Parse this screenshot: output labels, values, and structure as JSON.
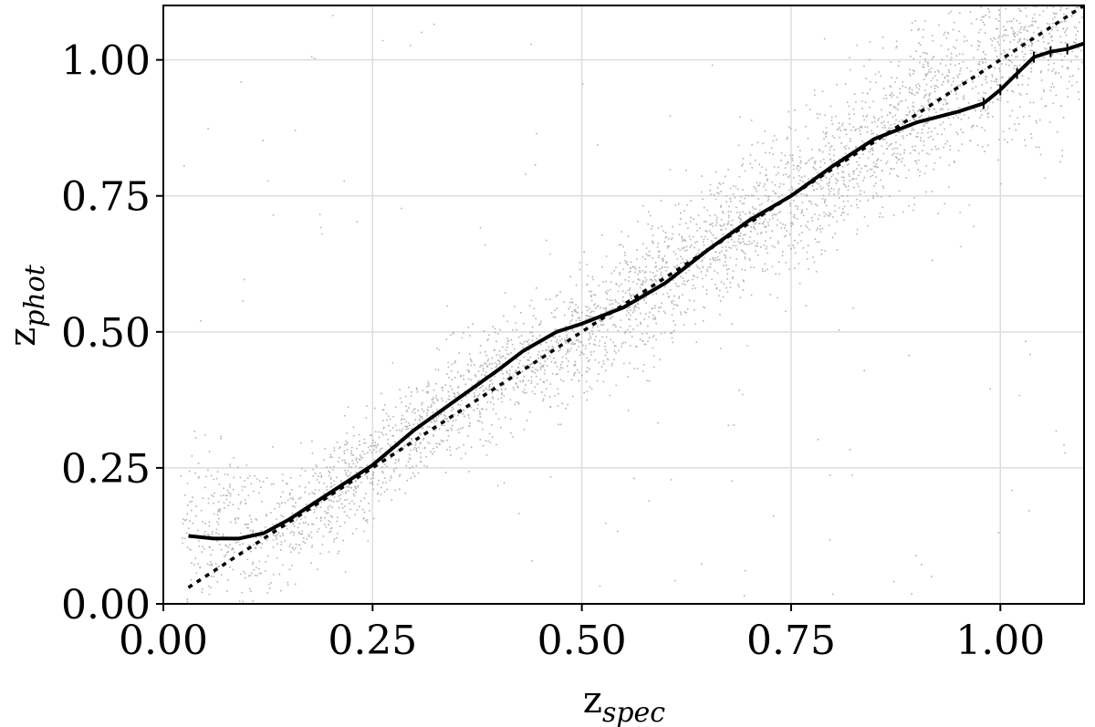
{
  "chart_data": {
    "type": "scatter",
    "title": "",
    "xlabel": {
      "main": "z",
      "sub": "spec"
    },
    "ylabel": {
      "main": "z",
      "sub": "phot"
    },
    "xlim": [
      0.0,
      1.1
    ],
    "ylim": [
      0.0,
      1.1
    ],
    "x_ticks": [
      0.0,
      0.25,
      0.5,
      0.75,
      1.0
    ],
    "y_ticks": [
      0.0,
      0.25,
      0.5,
      0.75,
      1.0
    ],
    "x_tick_labels": [
      "0.00",
      "0.25",
      "0.50",
      "0.75",
      "1.00"
    ],
    "y_tick_labels": [
      "0.00",
      "0.25",
      "0.50",
      "0.75",
      "1.00"
    ],
    "grid": true,
    "scatter": {
      "color": "#9a9a9a",
      "description_points": "dense cloud of galaxies following the one-to-one relation",
      "scatter_width_at_z": [
        [
          0.05,
          0.06
        ],
        [
          0.3,
          0.05
        ],
        [
          0.6,
          0.06
        ],
        [
          0.9,
          0.07
        ],
        [
          1.05,
          0.09
        ]
      ]
    },
    "series": [
      {
        "style": "dotted",
        "color": "#000000",
        "x": [
          0.03,
          1.1
        ],
        "y": [
          0.03,
          1.1
        ]
      },
      {
        "style": "solid",
        "color": "#000000",
        "x": [
          0.03,
          0.06,
          0.09,
          0.12,
          0.15,
          0.2,
          0.25,
          0.3,
          0.35,
          0.4,
          0.43,
          0.47,
          0.5,
          0.55,
          0.6,
          0.65,
          0.7,
          0.75,
          0.8,
          0.85,
          0.9,
          0.95,
          0.98,
          1.0,
          1.02,
          1.04,
          1.06,
          1.08,
          1.1
        ],
        "y": [
          0.125,
          0.12,
          0.12,
          0.13,
          0.155,
          0.205,
          0.255,
          0.32,
          0.375,
          0.43,
          0.465,
          0.5,
          0.515,
          0.545,
          0.59,
          0.65,
          0.705,
          0.75,
          0.805,
          0.855,
          0.885,
          0.905,
          0.92,
          0.945,
          0.975,
          1.005,
          1.015,
          1.02,
          1.03
        ]
      }
    ]
  }
}
